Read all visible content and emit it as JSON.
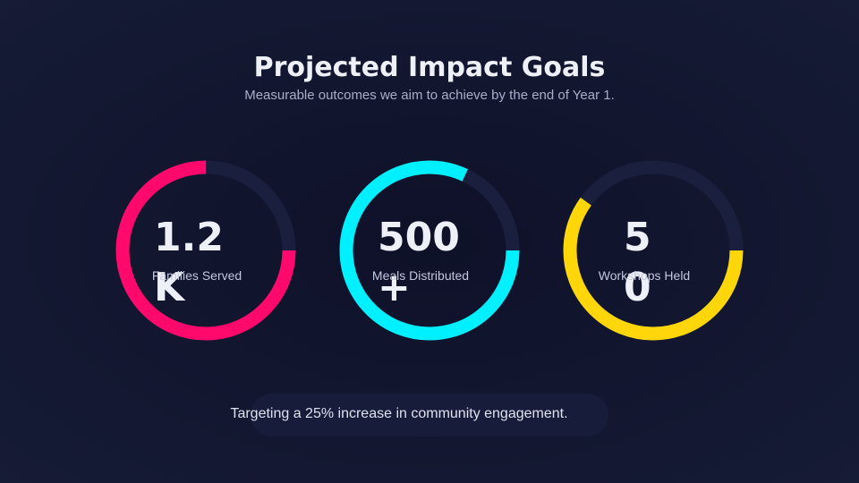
{
  "header": {
    "title": "Projected Impact Goals",
    "subtitle": "Measurable outcomes we aim to achieve by the end of Year 1."
  },
  "metrics": [
    {
      "value": "1.2K",
      "label": "Families Served",
      "progress": 75,
      "color": "#ff0a6c"
    },
    {
      "value": "500+",
      "label": "Meals Distributed",
      "progress": 82,
      "color": "#00f0ff"
    },
    {
      "value": "50",
      "label": "Workshops Held",
      "progress": 60,
      "color": "#ffd60a"
    }
  ],
  "footer": {
    "text": "Targeting a 25% increase in community engagement."
  }
}
